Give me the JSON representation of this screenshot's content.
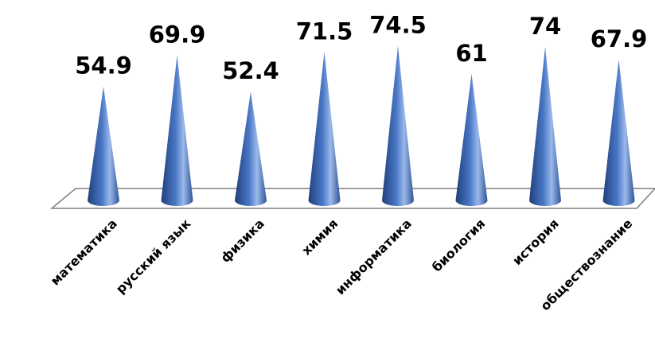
{
  "chart_data": {
    "type": "bar",
    "shape": "cone",
    "categories": [
      "математика",
      "русский язык",
      "физика",
      "химия",
      "информатика",
      "биология",
      "история",
      "обществознание"
    ],
    "values": [
      54.9,
      69.9,
      52.4,
      71.5,
      74.5,
      61,
      74,
      67.9
    ],
    "value_labels": [
      "54.9",
      "69.9",
      "52.4",
      "71.5",
      "74.5",
      "61",
      "74",
      "67.9"
    ],
    "title": "",
    "xlabel": "",
    "ylabel": "",
    "ylim": [
      0,
      80
    ],
    "grid": false,
    "legend": "none",
    "colors": {
      "cone_dark": "#1F3F7A",
      "cone_mid": "#4A78C6",
      "cone_light": "#9BB9EA",
      "floor_stroke": "#7F7F7F"
    }
  }
}
